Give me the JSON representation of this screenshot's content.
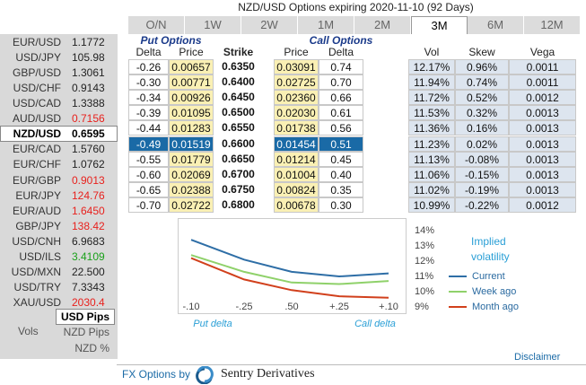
{
  "title": "NZD/USD Options expiring 2020-11-10 (92 Days)",
  "tabs": {
    "items": [
      "O/N",
      "1W",
      "2W",
      "1M",
      "2M",
      "3M",
      "6M",
      "12M"
    ],
    "selected": 5
  },
  "sidebar": {
    "pairs": [
      {
        "name": "EUR/USD",
        "value": "1.1772",
        "color": "#222222"
      },
      {
        "name": "USD/JPY",
        "value": "105.98",
        "color": "#222222"
      },
      {
        "name": "GBP/USD",
        "value": "1.3061",
        "color": "#222222"
      },
      {
        "name": "USD/CHF",
        "value": "0.9143",
        "color": "#222222"
      },
      {
        "name": "USD/CAD",
        "value": "1.3388",
        "color": "#222222"
      },
      {
        "name": "AUD/USD",
        "value": "0.7156",
        "color": "#e8211d"
      },
      {
        "name": "NZD/USD",
        "value": "0.6595",
        "color": "#000000"
      },
      {
        "name": "EUR/CAD",
        "value": "1.5760",
        "color": "#222222"
      },
      {
        "name": "EUR/CHF",
        "value": "1.0762",
        "color": "#222222"
      },
      {
        "name": "EUR/GBP",
        "value": "0.9013",
        "color": "#e8211d"
      },
      {
        "name": "EUR/JPY",
        "value": "124.76",
        "color": "#e8211d"
      },
      {
        "name": "EUR/AUD",
        "value": "1.6450",
        "color": "#e8211d"
      },
      {
        "name": "GBP/JPY",
        "value": "138.42",
        "color": "#e8211d"
      },
      {
        "name": "USD/CNH",
        "value": "6.9683",
        "color": "#222222"
      },
      {
        "name": "USD/ILS",
        "value": "3.4109",
        "color": "#1aa01a"
      },
      {
        "name": "USD/MXN",
        "value": "22.500",
        "color": "#222222"
      },
      {
        "name": "USD/TRY",
        "value": "7.3343",
        "color": "#222222"
      },
      {
        "name": "XAU/USD",
        "value": "2030.4",
        "color": "#e8211d"
      }
    ],
    "selected": 6,
    "units": {
      "active": "USD Pips",
      "label": "Vols",
      "options": [
        "NZD Pips",
        "NZD %"
      ]
    }
  },
  "table": {
    "put_header": "Put Options",
    "call_header": "Call Options",
    "columns": [
      "Delta",
      "Price",
      "Strike",
      "Price",
      "Delta",
      "Vol",
      "Skew",
      "Vega"
    ],
    "highlight_row": 5,
    "rows": [
      [
        "-0.26",
        "0.00657",
        "0.6350",
        "0.03091",
        "0.74",
        "12.17%",
        "0.96%",
        "0.0011"
      ],
      [
        "-0.30",
        "0.00771",
        "0.6400",
        "0.02725",
        "0.70",
        "11.94%",
        "0.74%",
        "0.0011"
      ],
      [
        "-0.34",
        "0.00926",
        "0.6450",
        "0.02360",
        "0.66",
        "11.72%",
        "0.52%",
        "0.0012"
      ],
      [
        "-0.39",
        "0.01095",
        "0.6500",
        "0.02030",
        "0.61",
        "11.53%",
        "0.32%",
        "0.0013"
      ],
      [
        "-0.44",
        "0.01283",
        "0.6550",
        "0.01738",
        "0.56",
        "11.36%",
        "0.16%",
        "0.0013"
      ],
      [
        "-0.49",
        "0.01519",
        "0.6600",
        "0.01454",
        "0.51",
        "11.23%",
        "0.02%",
        "0.0013"
      ],
      [
        "-0.55",
        "0.01779",
        "0.6650",
        "0.01214",
        "0.45",
        "11.13%",
        "-0.08%",
        "0.0013"
      ],
      [
        "-0.60",
        "0.02069",
        "0.6700",
        "0.01004",
        "0.40",
        "11.06%",
        "-0.15%",
        "0.0013"
      ],
      [
        "-0.65",
        "0.02388",
        "0.6750",
        "0.00824",
        "0.35",
        "11.02%",
        "-0.19%",
        "0.0013"
      ],
      [
        "-0.70",
        "0.02722",
        "0.6800",
        "0.00678",
        "0.30",
        "10.99%",
        "-0.22%",
        "0.0012"
      ]
    ]
  },
  "chart": {
    "type": "line",
    "legend_title": "Implied volatility",
    "categories": [
      "-.10",
      "-.25",
      ".50",
      "+.25",
      "+.10"
    ],
    "put_label": "Put delta",
    "call_label": "Call delta",
    "ylim": [
      9,
      14
    ],
    "yticks": [
      {
        "value": 14,
        "label": "14%"
      },
      {
        "value": 13,
        "label": "13%"
      },
      {
        "value": 12,
        "label": "12%"
      },
      {
        "value": 11,
        "label": "11%"
      },
      {
        "value": 10,
        "label": "10%"
      },
      {
        "value": 9,
        "label": "9%"
      }
    ],
    "series": [
      {
        "name": "Current",
        "color": "#2e6ea6",
        "values": [
          13.4,
          12.1,
          11.3,
          11.0,
          11.2
        ]
      },
      {
        "name": "Week ago",
        "color": "#8fd16a",
        "values": [
          12.4,
          11.3,
          10.6,
          10.5,
          10.7
        ]
      },
      {
        "name": "Month ago",
        "color": "#d1401c",
        "values": [
          12.2,
          10.8,
          10.1,
          9.7,
          9.6
        ]
      }
    ]
  },
  "footer": {
    "prefix": "FX Options by",
    "brand": "Sentry Derivatives",
    "disclaimer": "Disclaimer"
  }
}
